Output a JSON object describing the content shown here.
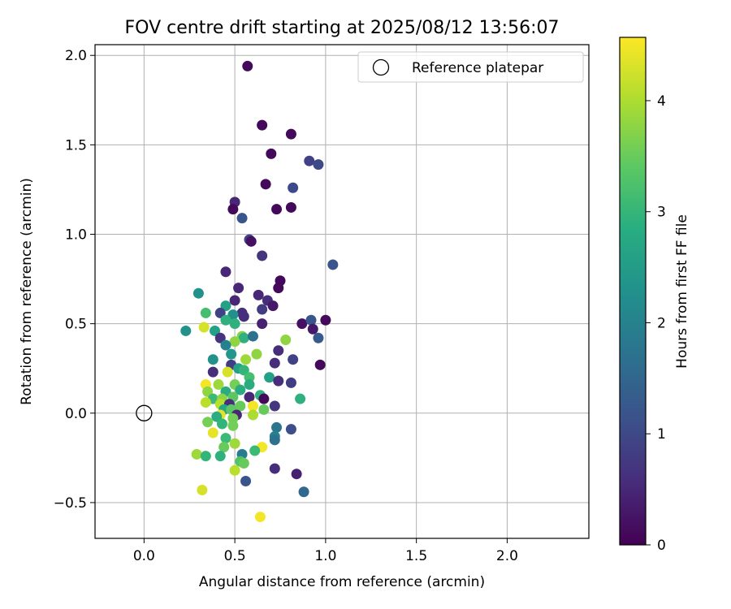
{
  "chart_data": {
    "type": "scatter",
    "title": "FOV centre drift starting at 2025/08/12 13:56:07",
    "xlabel": "Angular distance from reference (arcmin)",
    "ylabel": "Rotation from reference (arcmin)",
    "xlim": [
      -0.27,
      2.45
    ],
    "ylim": [
      -0.7,
      2.06
    ],
    "xticks": [
      0.0,
      0.5,
      1.0,
      1.5,
      2.0
    ],
    "xtick_labels": [
      "0.0",
      "0.5",
      "1.0",
      "1.5",
      "2.0"
    ],
    "yticks": [
      -0.5,
      0.0,
      0.5,
      1.0,
      1.5,
      2.0
    ],
    "ytick_labels": [
      "−0.5",
      "0.0",
      "0.5",
      "1.0",
      "1.5",
      "2.0"
    ],
    "grid": true,
    "legend": {
      "position": "top-right",
      "entries": [
        {
          "label": "Reference platepar",
          "marker": "open-circle"
        }
      ]
    },
    "reference_point": {
      "x": 0.0,
      "y": 0.0,
      "color": "#000000"
    },
    "colorbar": {
      "label": "Hours from first FF file",
      "range": [
        0,
        4.57
      ],
      "ticks": [
        0,
        1,
        2,
        3,
        4
      ],
      "tick_labels": [
        "0",
        "1",
        "2",
        "3",
        "4"
      ],
      "colormap": "viridis"
    },
    "points": [
      {
        "x": 0.57,
        "y": 1.94,
        "c": 0.1
      },
      {
        "x": 0.65,
        "y": 1.61,
        "c": 0.1
      },
      {
        "x": 0.81,
        "y": 1.56,
        "c": 0.1
      },
      {
        "x": 0.7,
        "y": 1.45,
        "c": 0.1
      },
      {
        "x": 0.91,
        "y": 1.41,
        "c": 0.9
      },
      {
        "x": 0.96,
        "y": 1.39,
        "c": 1.0
      },
      {
        "x": 0.67,
        "y": 1.28,
        "c": 0.1
      },
      {
        "x": 0.82,
        "y": 1.26,
        "c": 1.0
      },
      {
        "x": 0.5,
        "y": 1.18,
        "c": 0.5
      },
      {
        "x": 0.49,
        "y": 1.14,
        "c": 0.1
      },
      {
        "x": 0.73,
        "y": 1.14,
        "c": 0.1
      },
      {
        "x": 0.81,
        "y": 1.15,
        "c": 0.1
      },
      {
        "x": 0.54,
        "y": 1.09,
        "c": 1.2
      },
      {
        "x": 0.58,
        "y": 0.97,
        "c": 0.9
      },
      {
        "x": 0.59,
        "y": 0.96,
        "c": 0.2
      },
      {
        "x": 0.65,
        "y": 0.88,
        "c": 0.7
      },
      {
        "x": 1.04,
        "y": 0.83,
        "c": 1.2
      },
      {
        "x": 0.45,
        "y": 0.79,
        "c": 0.5
      },
      {
        "x": 0.75,
        "y": 0.74,
        "c": 0.1
      },
      {
        "x": 0.74,
        "y": 0.7,
        "c": 0.1
      },
      {
        "x": 0.52,
        "y": 0.7,
        "c": 0.5
      },
      {
        "x": 0.3,
        "y": 0.67,
        "c": 2.3
      },
      {
        "x": 0.63,
        "y": 0.66,
        "c": 0.5
      },
      {
        "x": 0.5,
        "y": 0.63,
        "c": 0.5
      },
      {
        "x": 0.68,
        "y": 0.63,
        "c": 0.6
      },
      {
        "x": 0.71,
        "y": 0.6,
        "c": 0.3
      },
      {
        "x": 0.65,
        "y": 0.58,
        "c": 0.8
      },
      {
        "x": 0.45,
        "y": 0.6,
        "c": 2.6
      },
      {
        "x": 0.42,
        "y": 0.56,
        "c": 0.9
      },
      {
        "x": 0.34,
        "y": 0.56,
        "c": 3.2
      },
      {
        "x": 0.54,
        "y": 0.56,
        "c": 0.6
      },
      {
        "x": 0.55,
        "y": 0.54,
        "c": 0.6
      },
      {
        "x": 0.49,
        "y": 0.55,
        "c": 2.3
      },
      {
        "x": 0.45,
        "y": 0.52,
        "c": 2.9
      },
      {
        "x": 0.5,
        "y": 0.5,
        "c": 2.9
      },
      {
        "x": 0.65,
        "y": 0.5,
        "c": 0.4
      },
      {
        "x": 0.87,
        "y": 0.5,
        "c": 0.2
      },
      {
        "x": 0.92,
        "y": 0.52,
        "c": 1.2
      },
      {
        "x": 1.0,
        "y": 0.52,
        "c": 0.1
      },
      {
        "x": 0.93,
        "y": 0.47,
        "c": 0.3
      },
      {
        "x": 0.33,
        "y": 0.48,
        "c": 4.3
      },
      {
        "x": 0.23,
        "y": 0.46,
        "c": 2.3
      },
      {
        "x": 0.39,
        "y": 0.46,
        "c": 2.6
      },
      {
        "x": 0.42,
        "y": 0.42,
        "c": 0.7
      },
      {
        "x": 0.54,
        "y": 0.43,
        "c": 3.7
      },
      {
        "x": 0.55,
        "y": 0.42,
        "c": 2.9
      },
      {
        "x": 0.6,
        "y": 0.43,
        "c": 1.7
      },
      {
        "x": 0.78,
        "y": 0.41,
        "c": 3.8
      },
      {
        "x": 0.96,
        "y": 0.42,
        "c": 1.3
      },
      {
        "x": 0.5,
        "y": 0.4,
        "c": 3.8
      },
      {
        "x": 0.45,
        "y": 0.38,
        "c": 2.0
      },
      {
        "x": 0.74,
        "y": 0.35,
        "c": 0.6
      },
      {
        "x": 0.62,
        "y": 0.33,
        "c": 3.8
      },
      {
        "x": 0.48,
        "y": 0.33,
        "c": 2.4
      },
      {
        "x": 0.38,
        "y": 0.3,
        "c": 2.3
      },
      {
        "x": 0.56,
        "y": 0.3,
        "c": 3.9
      },
      {
        "x": 0.82,
        "y": 0.3,
        "c": 0.9
      },
      {
        "x": 0.72,
        "y": 0.28,
        "c": 0.6
      },
      {
        "x": 0.48,
        "y": 0.27,
        "c": 0.8
      },
      {
        "x": 0.97,
        "y": 0.27,
        "c": 0.1
      },
      {
        "x": 0.52,
        "y": 0.25,
        "c": 2.6
      },
      {
        "x": 0.55,
        "y": 0.24,
        "c": 3.0
      },
      {
        "x": 0.38,
        "y": 0.23,
        "c": 0.6
      },
      {
        "x": 0.46,
        "y": 0.23,
        "c": 4.3
      },
      {
        "x": 0.58,
        "y": 0.2,
        "c": 3.2
      },
      {
        "x": 0.69,
        "y": 0.2,
        "c": 2.6
      },
      {
        "x": 0.74,
        "y": 0.18,
        "c": 0.6
      },
      {
        "x": 0.81,
        "y": 0.17,
        "c": 0.8
      },
      {
        "x": 0.34,
        "y": 0.16,
        "c": 4.5
      },
      {
        "x": 0.41,
        "y": 0.16,
        "c": 3.9
      },
      {
        "x": 0.5,
        "y": 0.16,
        "c": 3.6
      },
      {
        "x": 0.58,
        "y": 0.16,
        "c": 2.8
      },
      {
        "x": 0.35,
        "y": 0.12,
        "c": 3.8
      },
      {
        "x": 0.45,
        "y": 0.12,
        "c": 2.8
      },
      {
        "x": 0.53,
        "y": 0.13,
        "c": 2.8
      },
      {
        "x": 0.64,
        "y": 0.1,
        "c": 2.9
      },
      {
        "x": 0.38,
        "y": 0.08,
        "c": 3.1
      },
      {
        "x": 0.43,
        "y": 0.08,
        "c": 3.8
      },
      {
        "x": 0.49,
        "y": 0.09,
        "c": 3.4
      },
      {
        "x": 0.58,
        "y": 0.09,
        "c": 0.5
      },
      {
        "x": 0.66,
        "y": 0.08,
        "c": 0.1
      },
      {
        "x": 0.86,
        "y": 0.08,
        "c": 2.9
      },
      {
        "x": 0.34,
        "y": 0.06,
        "c": 4.1
      },
      {
        "x": 0.42,
        "y": 0.05,
        "c": 4.1
      },
      {
        "x": 0.47,
        "y": 0.05,
        "c": 0.6
      },
      {
        "x": 0.53,
        "y": 0.04,
        "c": 3.5
      },
      {
        "x": 0.6,
        "y": 0.04,
        "c": 4.5
      },
      {
        "x": 0.72,
        "y": 0.04,
        "c": 0.7
      },
      {
        "x": 0.44,
        "y": 0.02,
        "c": 2.7
      },
      {
        "x": 0.48,
        "y": 0.02,
        "c": 3.4
      },
      {
        "x": 0.66,
        "y": 0.02,
        "c": 3.5
      },
      {
        "x": 0.42,
        "y": -0.01,
        "c": 4.4
      },
      {
        "x": 0.4,
        "y": -0.02,
        "c": 2.8
      },
      {
        "x": 0.51,
        "y": -0.01,
        "c": 0.5
      },
      {
        "x": 0.6,
        "y": -0.01,
        "c": 4.0
      },
      {
        "x": 0.49,
        "y": -0.03,
        "c": 3.6
      },
      {
        "x": 0.35,
        "y": -0.05,
        "c": 3.6
      },
      {
        "x": 0.43,
        "y": -0.06,
        "c": 3.0
      },
      {
        "x": 0.49,
        "y": -0.07,
        "c": 3.6
      },
      {
        "x": 0.73,
        "y": -0.08,
        "c": 1.8
      },
      {
        "x": 0.81,
        "y": -0.09,
        "c": 1.1
      },
      {
        "x": 0.38,
        "y": -0.11,
        "c": 4.4
      },
      {
        "x": 0.72,
        "y": -0.13,
        "c": 2.0
      },
      {
        "x": 0.45,
        "y": -0.14,
        "c": 3.1
      },
      {
        "x": 0.72,
        "y": -0.15,
        "c": 1.7
      },
      {
        "x": 0.5,
        "y": -0.17,
        "c": 3.9
      },
      {
        "x": 0.44,
        "y": -0.19,
        "c": 3.5
      },
      {
        "x": 0.65,
        "y": -0.19,
        "c": 4.5
      },
      {
        "x": 0.61,
        "y": -0.21,
        "c": 3.1
      },
      {
        "x": 0.29,
        "y": -0.23,
        "c": 3.9
      },
      {
        "x": 0.34,
        "y": -0.24,
        "c": 3.0
      },
      {
        "x": 0.42,
        "y": -0.24,
        "c": 2.9
      },
      {
        "x": 0.54,
        "y": -0.23,
        "c": 1.9
      },
      {
        "x": 0.53,
        "y": -0.27,
        "c": 3.3
      },
      {
        "x": 0.55,
        "y": -0.28,
        "c": 3.5
      },
      {
        "x": 0.72,
        "y": -0.31,
        "c": 0.6
      },
      {
        "x": 0.5,
        "y": -0.32,
        "c": 4.1
      },
      {
        "x": 0.84,
        "y": -0.34,
        "c": 0.4
      },
      {
        "x": 0.56,
        "y": -0.38,
        "c": 1.2
      },
      {
        "x": 0.32,
        "y": -0.43,
        "c": 4.3
      },
      {
        "x": 0.88,
        "y": -0.44,
        "c": 1.5
      },
      {
        "x": 0.64,
        "y": -0.58,
        "c": 4.5
      }
    ]
  }
}
